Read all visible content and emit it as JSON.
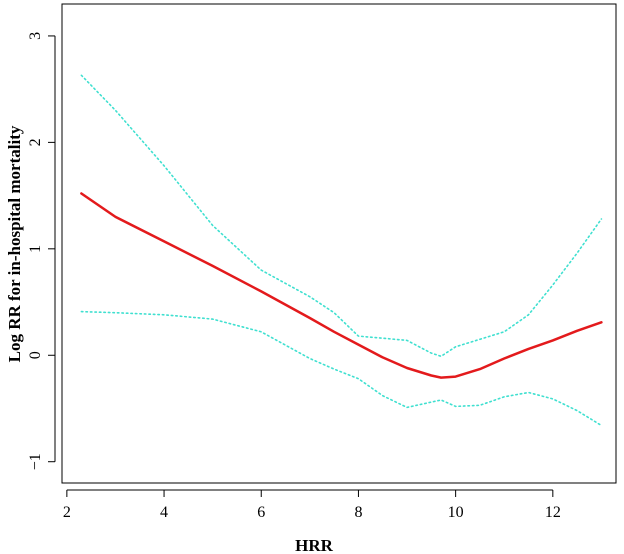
{
  "chart_data": {
    "type": "line",
    "title": "",
    "xlabel": "HRR",
    "ylabel": "Log RR for in-hospital mortality",
    "xlim": [
      1.9,
      13.3
    ],
    "ylim": [
      -1.2,
      3.3
    ],
    "x_ticks": [
      2,
      4,
      6,
      8,
      10,
      12
    ],
    "x_tick_labels": [
      "2",
      "4",
      "6",
      "8",
      "10",
      "12"
    ],
    "y_ticks": [
      -1,
      0,
      1,
      2,
      3
    ],
    "y_tick_labels": [
      "−1",
      "0",
      "1",
      "2",
      "3"
    ],
    "grid": false,
    "legend": "none",
    "series": [
      {
        "role": "estimate",
        "color": "#e31a1c",
        "style": "solid",
        "x": [
          2.3,
          3.0,
          4.0,
          5.0,
          6.0,
          7.0,
          7.5,
          8.0,
          8.5,
          9.0,
          9.5,
          9.7,
          10.0,
          10.5,
          11.0,
          11.5,
          12.0,
          12.5,
          13.0
        ],
        "y": [
          1.52,
          1.3,
          1.07,
          0.84,
          0.6,
          0.35,
          0.22,
          0.1,
          -0.02,
          -0.12,
          -0.19,
          -0.21,
          -0.2,
          -0.13,
          -0.03,
          0.06,
          0.14,
          0.23,
          0.31
        ]
      },
      {
        "role": "upper-ci",
        "color": "#40e0d0",
        "style": "dotted",
        "x": [
          2.3,
          3.0,
          4.0,
          5.0,
          6.0,
          7.0,
          7.5,
          8.0,
          8.5,
          9.0,
          9.5,
          9.7,
          10.0,
          10.5,
          11.0,
          11.5,
          12.0,
          12.5,
          13.0
        ],
        "y": [
          2.63,
          2.3,
          1.78,
          1.22,
          0.8,
          0.55,
          0.4,
          0.18,
          0.16,
          0.14,
          0.02,
          -0.01,
          0.08,
          0.15,
          0.22,
          0.38,
          0.66,
          0.96,
          1.28
        ]
      },
      {
        "role": "lower-ci",
        "color": "#40e0d0",
        "style": "dotted",
        "x": [
          2.3,
          3.0,
          4.0,
          5.0,
          6.0,
          7.0,
          7.5,
          8.0,
          8.5,
          9.0,
          9.5,
          9.7,
          10.0,
          10.5,
          11.0,
          11.5,
          12.0,
          12.5,
          13.0
        ],
        "y": [
          0.41,
          0.4,
          0.38,
          0.34,
          0.22,
          -0.03,
          -0.13,
          -0.22,
          -0.38,
          -0.49,
          -0.44,
          -0.42,
          -0.48,
          -0.47,
          -0.39,
          -0.35,
          -0.41,
          -0.52,
          -0.66
        ]
      }
    ]
  }
}
